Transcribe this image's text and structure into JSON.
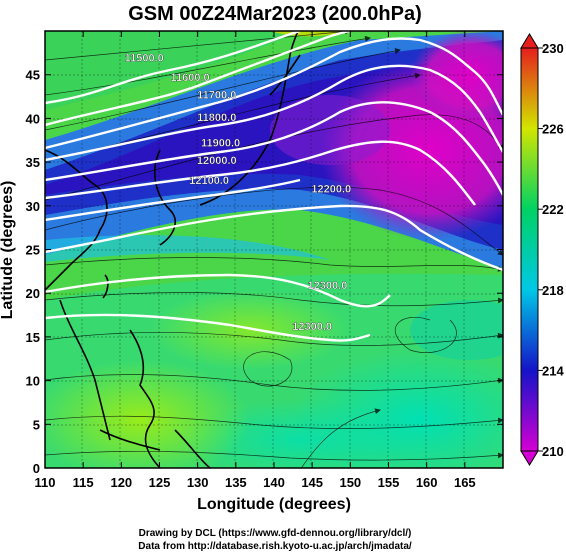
{
  "chart_data": {
    "type": "heatmap",
    "title": "GSM 00Z24Mar2023 (200.0hPa)",
    "xlabel": "Longitude (degrees)",
    "ylabel": "Latitude  (degrees)",
    "xlim": [
      110,
      170
    ],
    "ylim": [
      0,
      50
    ],
    "x_ticks": [
      "110",
      "115",
      "120",
      "125",
      "130",
      "135",
      "140",
      "145",
      "150",
      "155",
      "160",
      "165"
    ],
    "y_ticks": [
      "0",
      "5",
      "10",
      "15",
      "20",
      "25",
      "30",
      "35",
      "40",
      "45"
    ],
    "colorbar": {
      "min": 210,
      "max": 230,
      "ticks": [
        "210",
        "214",
        "218",
        "222",
        "226",
        "230"
      ]
    },
    "grid": true,
    "contours": [
      {
        "label": "11500.0",
        "level": 11500,
        "lon": 123,
        "lat": 46.5
      },
      {
        "label": "11600.0",
        "level": 11600,
        "lon": 129,
        "lat": 44.3
      },
      {
        "label": "11700.0",
        "level": 11700,
        "lon": 132.5,
        "lat": 42.3
      },
      {
        "label": "11800.0",
        "level": 11800,
        "lon": 132.5,
        "lat": 39.7
      },
      {
        "label": "11900.0",
        "level": 11900,
        "lon": 133,
        "lat": 36.8
      },
      {
        "label": "12000.0",
        "level": 12000,
        "lon": 132.5,
        "lat": 34.8
      },
      {
        "label": "12100.0",
        "level": 12100,
        "lon": 131.5,
        "lat": 32.5
      },
      {
        "label": "12200.0",
        "level": 12200,
        "lon": 147.5,
        "lat": 31.5
      },
      {
        "label": "12300.0",
        "level": 12300,
        "lon": 147,
        "lat": 20.5
      },
      {
        "label": "12300.0",
        "level": 12300,
        "lon": 145,
        "lat": 15.8
      }
    ]
  },
  "footer": {
    "line1": "Drawing by DCL (https://www.gfd-dennou.org/library/dcl/)",
    "line2": "Data from http://database.rish.kyoto-u.ac.jp/arch/jmadata/"
  }
}
